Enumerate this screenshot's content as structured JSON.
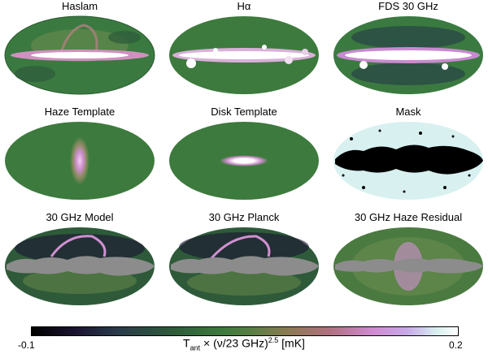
{
  "panels": [
    {
      "title": "Haslam",
      "kind": "sky-map"
    },
    {
      "title": "Hα",
      "kind": "sky-map"
    },
    {
      "title": "FDS 30 GHz",
      "kind": "sky-map"
    },
    {
      "title": "Haze Template",
      "kind": "template"
    },
    {
      "title": "Disk Template",
      "kind": "template"
    },
    {
      "title": "Mask",
      "kind": "mask"
    },
    {
      "title": "30 GHz Model",
      "kind": "masked-map"
    },
    {
      "title": "30 GHz Planck",
      "kind": "masked-map"
    },
    {
      "title": "30 GHz Haze Residual",
      "kind": "masked-map"
    }
  ],
  "colorbar": {
    "min_label": "-0.1",
    "max_label": "0.2",
    "label_main": "T",
    "label_sub": "ant",
    "label_mid": " × (ν/23 GHz)",
    "label_sup": "2.5",
    "label_unit": " [mK]",
    "colors": [
      "#000000",
      "#2e5a3a",
      "#3d7a3d",
      "#d08ad0",
      "#ffffff"
    ]
  }
}
